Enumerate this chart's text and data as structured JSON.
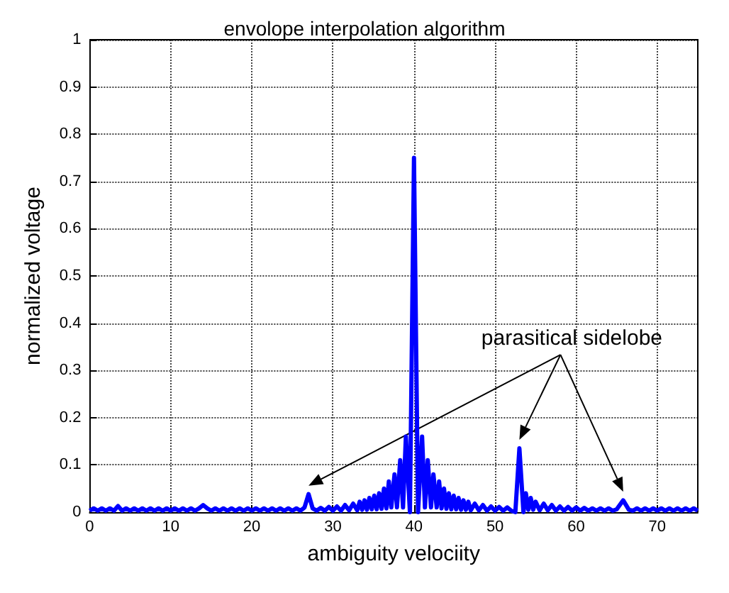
{
  "chart_data": {
    "type": "line",
    "title": "envolope interpolation algorithm",
    "xlabel": "ambiguity velociity",
    "ylabel": "normalized voltage",
    "xlim": [
      0,
      75
    ],
    "xticks": [
      0,
      10,
      20,
      30,
      40,
      50,
      60,
      70
    ],
    "ylim": [
      0,
      1
    ],
    "yticks": [
      0,
      0.1,
      0.2,
      0.3,
      0.4,
      0.5,
      0.6,
      0.7,
      0.8,
      0.9,
      1
    ],
    "grid": true,
    "marker": "none",
    "line_style": "solid",
    "annotations": [
      "parasitical sidelobe"
    ],
    "series": [
      {
        "color": "#0000ff",
        "x": [
          0,
          0.5,
          1,
          1.5,
          2,
          2.5,
          3,
          3.5,
          4,
          4.5,
          5,
          5.5,
          6,
          6.5,
          7,
          7.5,
          8,
          8.5,
          9,
          9.5,
          10,
          10.5,
          11,
          11.5,
          12,
          12.5,
          13,
          13.5,
          14,
          14.5,
          15,
          15.5,
          16,
          16.5,
          17,
          17.5,
          18,
          18.5,
          19,
          19.5,
          20,
          20.5,
          21,
          21.5,
          22,
          22.5,
          23,
          23.5,
          24,
          24.5,
          25,
          25.5,
          26,
          26.5,
          27,
          27.5,
          28,
          28.5,
          29,
          29.5,
          30,
          30.5,
          31,
          31.5,
          32,
          32.5,
          33,
          33.3,
          33.6,
          33.9,
          34.2,
          34.5,
          34.8,
          35.1,
          35.4,
          35.7,
          36,
          36.3,
          36.6,
          36.9,
          37.2,
          37.6,
          37.9,
          38.3,
          38.65,
          39,
          39.5,
          40,
          40.5,
          41,
          41.35,
          41.7,
          42.1,
          42.4,
          42.8,
          43.1,
          43.4,
          43.7,
          44,
          44.3,
          44.6,
          44.9,
          45.2,
          45.5,
          45.8,
          46.1,
          46.4,
          46.7,
          47,
          47.5,
          48,
          48.5,
          49,
          49.5,
          50,
          50.5,
          51,
          51.5,
          52,
          52.5,
          53,
          53.5,
          53.8,
          54.1,
          54.4,
          54.7,
          55,
          55.5,
          56,
          56.5,
          57,
          57.5,
          58,
          58.5,
          59,
          59.5,
          60,
          60.5,
          61,
          61.5,
          62,
          62.5,
          63,
          63.5,
          64,
          64.5,
          65,
          65.8,
          66.5,
          67,
          67.5,
          68,
          68.5,
          69,
          69.5,
          70,
          70.5,
          71,
          71.5,
          72,
          72.5,
          73,
          73.5,
          74,
          74.5,
          75
        ],
        "values": [
          0.003,
          0.008,
          0.003,
          0.008,
          0.003,
          0.008,
          0.003,
          0.013,
          0.003,
          0.008,
          0.003,
          0.008,
          0.003,
          0.008,
          0.003,
          0.008,
          0.003,
          0.008,
          0.003,
          0.008,
          0.003,
          0.008,
          0.003,
          0.008,
          0.003,
          0.008,
          0.003,
          0.008,
          0.015,
          0.008,
          0.003,
          0.008,
          0.003,
          0.008,
          0.003,
          0.008,
          0.003,
          0.008,
          0.003,
          0.008,
          0.003,
          0.008,
          0.003,
          0.008,
          0.003,
          0.008,
          0.003,
          0.008,
          0.003,
          0.008,
          0.003,
          0.008,
          0.003,
          0.01,
          0.038,
          0.008,
          0.003,
          0.009,
          0.003,
          0.011,
          0.003,
          0.012,
          0.003,
          0.015,
          0.004,
          0.018,
          0.004,
          0.022,
          0.005,
          0.025,
          0.005,
          0.03,
          0.006,
          0.035,
          0.006,
          0.04,
          0.007,
          0.05,
          0.008,
          0.065,
          0.01,
          0.08,
          0.01,
          0.11,
          0.01,
          0.16,
          0,
          0.75,
          0,
          0.16,
          0.01,
          0.11,
          0.01,
          0.08,
          0.01,
          0.065,
          0.008,
          0.05,
          0.007,
          0.04,
          0.006,
          0.035,
          0.006,
          0.03,
          0.005,
          0.025,
          0.005,
          0.022,
          0.004,
          0.018,
          0.004,
          0.015,
          0.003,
          0.012,
          0.003,
          0.011,
          0.003,
          0.01,
          0.003,
          0,
          0.135,
          0,
          0.04,
          0.005,
          0.03,
          0.005,
          0.022,
          0.004,
          0.018,
          0.004,
          0.015,
          0.003,
          0.012,
          0.003,
          0.011,
          0.003,
          0.01,
          0.003,
          0.009,
          0.003,
          0.008,
          0.003,
          0.008,
          0.003,
          0.008,
          0.003,
          0.006,
          0.025,
          0.005,
          0.003,
          0.008,
          0.003,
          0.008,
          0.003,
          0.008,
          0.003,
          0.008,
          0.003,
          0.008,
          0.003,
          0.008,
          0.003,
          0.008,
          0.003,
          0.008,
          0.003
        ]
      }
    ]
  }
}
